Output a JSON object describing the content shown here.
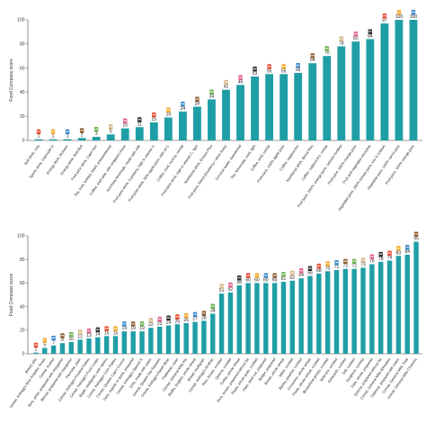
{
  "colors": {
    "bar": "#1f9ea6",
    "axis": "#444444",
    "text": "#222222",
    "icon_palette": [
      "#e8492b",
      "#f5a623",
      "#3a86c8",
      "#8b5a2b",
      "#6ab04c",
      "#d4b483",
      "#e05d8a",
      "#2d2d2d"
    ]
  },
  "chart_data": [
    {
      "type": "bar",
      "ylabel": "Food Compass score",
      "ylim": [
        0,
        100
      ],
      "yticks": [
        0,
        20,
        40,
        60,
        80,
        100
      ],
      "grid": false,
      "legend": "none",
      "categories": [
        "Soft drink, cola",
        "Sports drink, Gatorade G",
        "Energy drink, Monster",
        "Energy drink, Red Bull",
        "Fruit juice drink, Capri Sun",
        "Tea, iced, bottled, black, presweetened",
        "Coffee, iced latte, with whipped cream",
        "Horchata beverage, made with milk",
        "Fruit juice drink, cranberry, high in vitamin C",
        "Fruit juice drink, 50% apple juice, with vit C",
        "Coffee, iced, mocha, nonfat",
        "Fruit juice drink, high in vitamin C, light",
        "Nutritional drink, Ensure Plus",
        "Fruit juice, blend (blueberry / other fruits)",
        "Coconut water, sweetened",
        "Tea, lemonade, iced, light",
        "Coffee, iced, nonfat",
        "Fruit juice, 100% apple juice",
        "Coffee, cappuccino",
        "Nutritional drink, Boost Plus",
        "Coffee, cappuccino, nonfat",
        "Fruit juice, 100%, orange juice, calcium fortified",
        "Fruit juice, 100% orange juice",
        "Fruit and vegetable smoothie",
        "Vegetable juice, 100% tomato juice, low in sodium",
        "Vegetable juice, 100% carrot juice",
        "Fruit juice, 100% orange juice"
      ],
      "values": [
        1,
        1,
        1,
        2,
        3,
        5,
        10,
        11,
        15,
        19,
        24,
        28,
        34,
        42,
        46,
        53,
        55,
        55,
        56,
        64,
        70,
        78,
        82,
        84,
        97,
        100,
        100
      ]
    },
    {
      "type": "bar",
      "ylabel": "Food Compass score",
      "ylim": [
        0,
        100
      ],
      "yticks": [
        0,
        20,
        40,
        60,
        80,
        100
      ],
      "grid": false,
      "legend": "none",
      "categories": [
        "Bread, pita",
        "Cereal, Kellogg's Rice Krispies Treats",
        "Cereal, frosted",
        "Rice, white, prepared with margarine",
        "Biscuit, prepared with margarine",
        "Pancake, plain",
        "Cereal, Kellogg's Frosted Flakes",
        "Cereal, Kellogg's Froot Loops",
        "Bagel, multigrain, with raisins",
        "Cereal, Kellogg's Corn Flakes",
        "Cereal, Quaker Cap'n Crunch",
        "Oats, regular or quick, prepared",
        "Cereal, Kellogg's Special K",
        "Grits, made with water",
        "Cereal, Quaker Oat Squares",
        "Cereal, Kellogg's Raisin Bran",
        "Flatbread, naan",
        "Cereal, General Mills Kix",
        "Muffin, English, whole wheat",
        "Bread, multigrain",
        "Cereal, Kellogg's All-Bran",
        "Rice, brown, cooked",
        "Quinoa, cooked",
        "Tortilla, whole wheat",
        "Rice, brown, prepared without fat",
        "Pasta, whole grain, cooked",
        "Oats, steel cut, prepared",
        "Bulgur, prepared",
        "Bread, whole wheat",
        "Millet, cooked",
        "Barley, pearled, cooked",
        "Couscous, whole wheat",
        "Pasta, whole wheat, cooked",
        "Buckwheat groats, cooked",
        "Wild rice, cooked",
        "Amaranth, cooked",
        "Teff, cooked",
        "Sorghum, cooked",
        "Oats, whole, prepared",
        "Quinoa, prepared without fat",
        "Cereal, General Mills Wheaties",
        "Oatmeal, prepared with water",
        "Cereal, General Mills Total",
        "Cereal, General Mills Cheerios"
      ],
      "values": [
        1,
        5,
        7,
        9,
        10,
        12,
        13,
        14,
        15,
        15,
        19,
        19,
        19,
        22,
        23,
        24,
        25,
        26,
        27,
        28,
        34,
        51,
        52,
        58,
        60,
        60,
        60,
        60,
        61,
        62,
        64,
        66,
        68,
        70,
        71,
        72,
        72,
        73,
        76,
        78,
        79,
        83,
        84,
        95
      ]
    }
  ]
}
